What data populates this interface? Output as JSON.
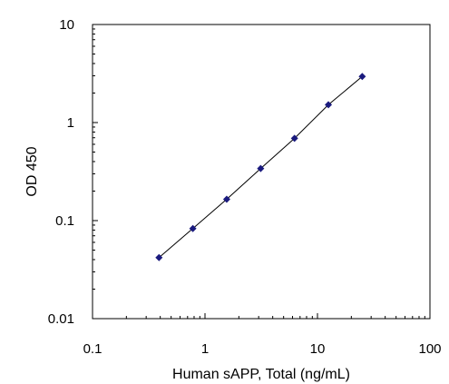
{
  "chart_data": {
    "type": "scatter",
    "title": "",
    "xlabel": "Human sAPP, Total (ng/mL)",
    "ylabel": "OD 450",
    "x_scale": "log",
    "y_scale": "log",
    "xlim": [
      0.1,
      100
    ],
    "ylim": [
      0.01,
      10
    ],
    "x_tick_labels": [
      "0.1",
      "1",
      "10",
      "100"
    ],
    "y_tick_labels": [
      "10",
      "1",
      "0.1",
      "0.01"
    ],
    "grid": false,
    "legend": "none",
    "marker": "diamond",
    "marker_color": "#1a1a7e",
    "line_color": "#000000",
    "series": [
      {
        "x": [
          0.39,
          0.78,
          1.56,
          3.125,
          6.25,
          12.5,
          25
        ],
        "y": [
          0.042,
          0.083,
          0.165,
          0.34,
          0.69,
          1.52,
          2.95
        ]
      }
    ]
  }
}
